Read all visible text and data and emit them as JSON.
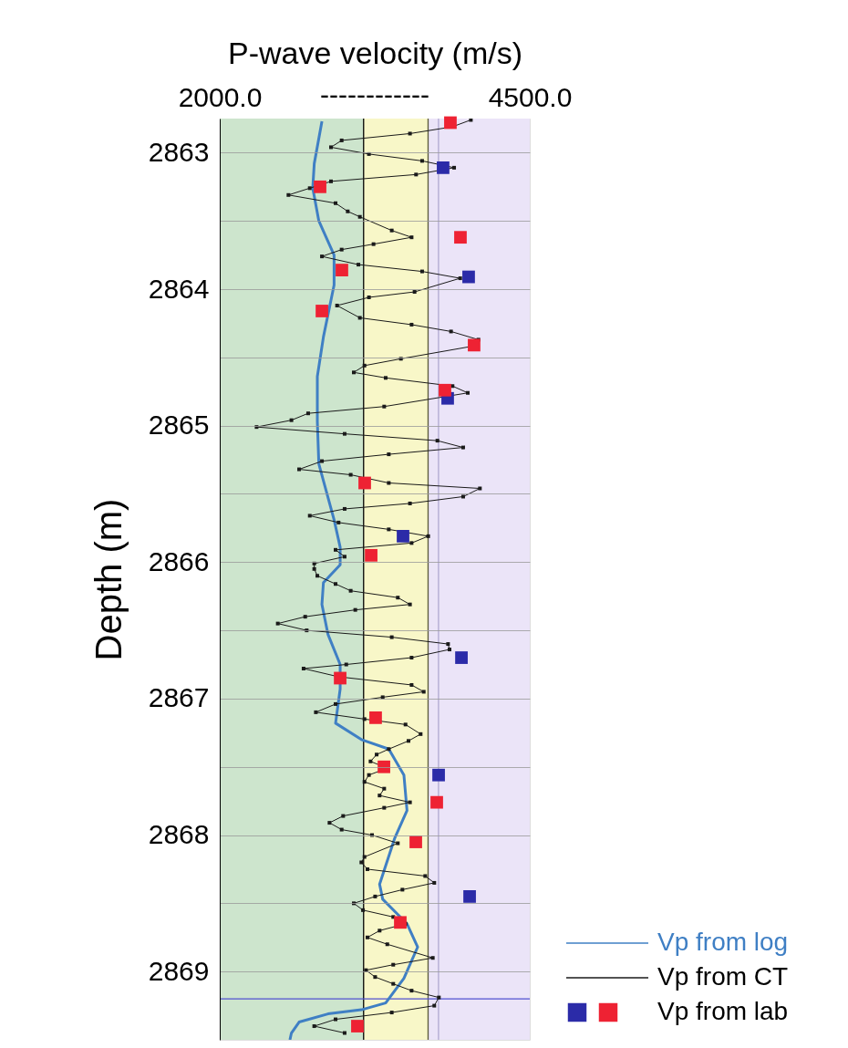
{
  "chart_data": {
    "type": "line",
    "orientation": "horizontal",
    "xlabel": "P-wave velocity (m/s)",
    "ylabel": "Depth (m)",
    "xlim": [
      2000,
      4500
    ],
    "xticks": [
      {
        "value": 2000,
        "label": "2000.0"
      },
      {
        "value": 4500,
        "label": "4500.0"
      }
    ],
    "ylim": [
      2869.5,
      2862.75
    ],
    "yticks": [
      2863,
      {
        "value": 2863.5,
        "label": null
      },
      2864,
      {
        "value": 2864.5,
        "label": null
      },
      2865,
      {
        "value": 2865.5,
        "label": null
      },
      2866,
      {
        "value": 2866.5,
        "label": null
      },
      2867,
      {
        "value": 2867.5,
        "label": null
      },
      2868,
      {
        "value": 2868.5,
        "label": null
      },
      2869
    ],
    "annotations": [
      "------------"
    ],
    "grid": "y",
    "legend": "bottom right",
    "bands": [
      {
        "axis": "x",
        "from": 2000,
        "to": 3160,
        "color": "#cde5cd"
      },
      {
        "axis": "x",
        "from": 3160,
        "to": 3680,
        "color": "#f8f7c8"
      },
      {
        "axis": "x",
        "from": 3680,
        "to": 4500,
        "color": "#ebe4f8"
      }
    ],
    "ref_lines": [
      {
        "axis": "x",
        "value": 3160,
        "color": "#000000"
      },
      {
        "axis": "x",
        "value": 3680,
        "color": "#5a5a3a"
      },
      {
        "axis": "x",
        "value": 3764,
        "color": "#b0a8d0"
      },
      {
        "axis": "y",
        "value": 2869.2,
        "color": "#5050d0"
      }
    ],
    "series": [
      {
        "name": "Vp from log",
        "color": "#3f7fc4",
        "marker": "none",
        "values": [
          2824,
          2762,
          2750,
          2799,
          2922,
          2922,
          2836,
          2787,
          2787,
          2799,
          2922,
          2971,
          2971,
          2836,
          2824,
          2873,
          2971,
          2971,
          2934,
          3142,
          3363,
          3485,
          3510,
          3412,
          3289,
          3314,
          3510,
          3596,
          3485,
          3338,
          3142,
          2873,
          2640,
          2578,
          2566
        ],
        "x": [
          2862.77,
          2863.08,
          2863.26,
          2863.5,
          2863.75,
          2863.97,
          2864.35,
          2864.64,
          2864.97,
          2865.28,
          2865.69,
          2865.89,
          2866.02,
          2866.15,
          2866.31,
          2866.53,
          2866.75,
          2866.93,
          2867.18,
          2867.3,
          2867.37,
          2867.56,
          2867.82,
          2868.02,
          2868.36,
          2868.47,
          2868.65,
          2868.82,
          2869.05,
          2869.23,
          2869.28,
          2869.31,
          2869.37,
          2869.45,
          2869.5
        ]
      },
      {
        "name": "Vp from CT",
        "color": "#1a1a1a",
        "marker": "square",
        "values": [
          4025,
          3877,
          3534,
          2983,
          2897,
          3203,
          3632,
          3890,
          3583,
          2897,
          2726,
          2554,
          2934,
          3032,
          3130,
          3387,
          3547,
          3240,
          2983,
          2824,
          3118,
          3632,
          3939,
          3571,
          3203,
          2946,
          3130,
          3547,
          3865,
          4086,
          4025,
          3461,
          3167,
          3081,
          3338,
          3877,
          4000,
          3326,
          2713,
          2578,
          2297,
          3007,
          3755,
          3963,
          3363,
          2824,
          2640,
          3056,
          3363,
          4098,
          3963,
          3534,
          3007,
          2726,
          2958,
          3363,
          3681,
          3547,
          2934,
          3007,
          2762,
          2762,
          2787,
          2934,
          3056,
          3436,
          3534,
          3093,
          2689,
          2468,
          2701,
          3387,
          3841,
          3853,
          3547,
          3020,
          2676,
          2958,
          3547,
          3645,
          3314,
          2934,
          2775,
          3167,
          3498,
          3620,
          3522,
          3363,
          3265,
          3216,
          3350,
          3203,
          3167,
          3326,
          3289,
          3534,
          3326,
          2995,
          2885,
          2983,
          3228,
          3436,
          3167,
          3142,
          3191,
          3657,
          3730,
          3473,
          3253,
          3081,
          3155,
          3399,
          3498,
          3289,
          3191,
          3351,
          3718,
          3399,
          3179,
          3253,
          3399,
          3547,
          3767,
          3730,
          3387,
          2934,
          2762,
          3007
        ],
        "x": [
          2862.76,
          2862.81,
          2862.86,
          2862.91,
          2862.96,
          2863.01,
          2863.06,
          2863.11,
          2863.16,
          2863.21,
          2863.26,
          2863.31,
          2863.37,
          2863.43,
          2863.47,
          2863.57,
          2863.62,
          2863.67,
          2863.71,
          2863.76,
          2863.82,
          2863.87,
          2863.92,
          2864.02,
          2864.06,
          2864.12,
          2864.21,
          2864.26,
          2864.31,
          2864.37,
          2864.42,
          2864.51,
          2864.56,
          2864.61,
          2864.65,
          2864.71,
          2864.76,
          2864.86,
          2864.91,
          2864.96,
          2865.01,
          2865.06,
          2865.11,
          2865.16,
          2865.21,
          2865.26,
          2865.32,
          2865.36,
          2865.42,
          2865.46,
          2865.52,
          2865.57,
          2865.61,
          2865.66,
          2865.71,
          2865.76,
          2865.81,
          2865.86,
          2865.91,
          2865.96,
          2866.01,
          2866.05,
          2866.1,
          2866.16,
          2866.21,
          2866.26,
          2866.31,
          2866.35,
          2866.4,
          2866.45,
          2866.5,
          2866.55,
          2866.6,
          2866.64,
          2866.7,
          2866.75,
          2866.78,
          2866.84,
          2866.9,
          2866.95,
          2866.99,
          2867.04,
          2867.1,
          2867.15,
          2867.19,
          2867.26,
          2867.31,
          2867.37,
          2867.41,
          2867.46,
          2867.51,
          2867.56,
          2867.61,
          2867.66,
          2867.71,
          2867.76,
          2867.8,
          2867.86,
          2867.91,
          2867.96,
          2868.0,
          2868.06,
          2868.16,
          2868.2,
          2868.25,
          2868.3,
          2868.35,
          2868.4,
          2868.45,
          2868.5,
          2868.55,
          2868.6,
          2868.65,
          2868.7,
          2868.75,
          2868.8,
          2868.9,
          2868.95,
          2868.99,
          2869.04,
          2869.09,
          2869.14,
          2869.19,
          2869.25,
          2869.3,
          2869.35,
          2869.4,
          2869.45
        ]
      },
      {
        "name": "Vp from lab",
        "type": "scatter",
        "marker": "square",
        "values": [
          3801,
          4007,
          3838,
          3478,
          3949,
          3765,
          4015,
          3860,
          2809,
          3941,
          2985,
          2824,
          4051,
          3816,
          3169,
          3221,
          2971,
          3257,
          3324,
          3750,
          3581,
          3456,
          3110
        ],
        "x": [
          2863.11,
          2863.91,
          2864.8,
          2865.81,
          2866.7,
          2867.56,
          2868.45,
          2862.78,
          2863.25,
          2863.62,
          2863.86,
          2864.16,
          2864.41,
          2864.74,
          2865.42,
          2865.95,
          2866.85,
          2867.14,
          2867.5,
          2867.76,
          2868.05,
          2868.64,
          2869.4
        ],
        "colors": [
          "#2b2ba8",
          "#2b2ba8",
          "#2b2ba8",
          "#2b2ba8",
          "#2b2ba8",
          "#2b2ba8",
          "#2b2ba8",
          "#ee2233",
          "#ee2233",
          "#ee2233",
          "#ee2233",
          "#ee2233",
          "#ee2233",
          "#ee2233",
          "#ee2233",
          "#ee2233",
          "#ee2233",
          "#ee2233",
          "#ee2233",
          "#ee2233",
          "#ee2233",
          "#ee2233",
          "#ee2233"
        ]
      }
    ]
  }
}
